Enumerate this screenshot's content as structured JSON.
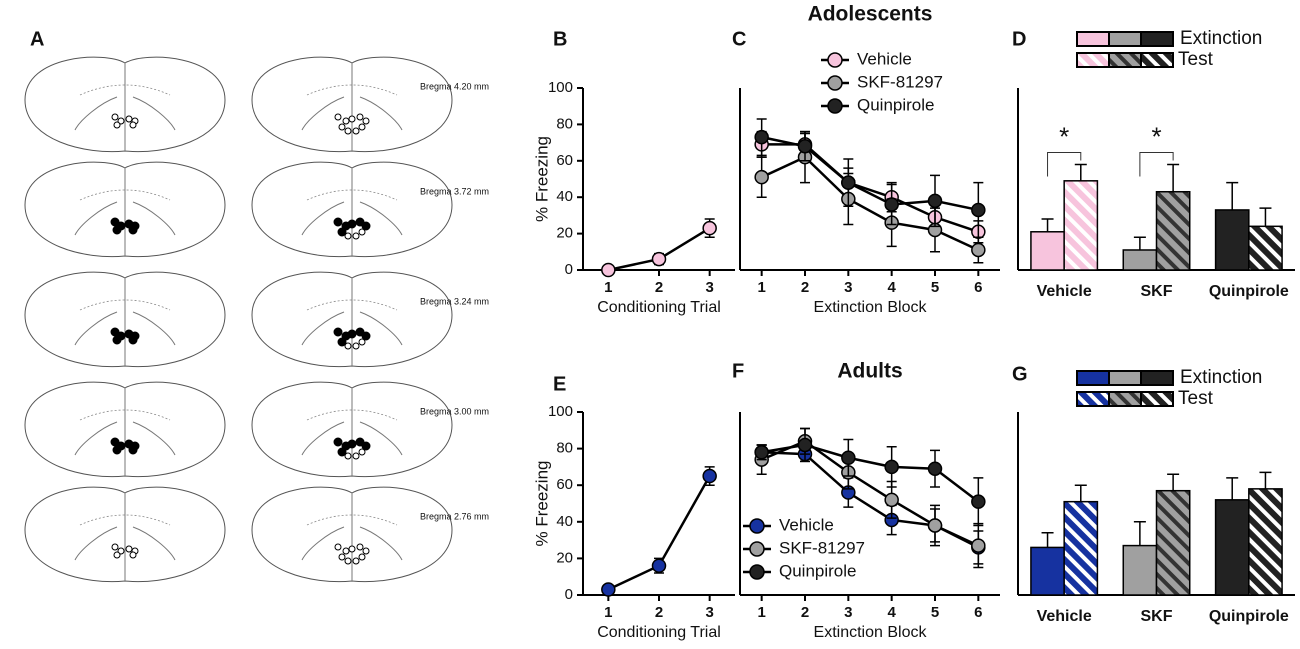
{
  "panel_a": {
    "label": "A",
    "bregma": [
      "Bregma 4.20 mm",
      "Bregma 3.72 mm",
      "Bregma 3.24 mm",
      "Bregma 3.00 mm",
      "Bregma 2.76 mm"
    ]
  },
  "chart_data": [
    {
      "type": "line",
      "label": "B",
      "ylabel": "% Freezing",
      "xlabel": "Conditioning Trial",
      "categories": [
        "1",
        "2",
        "3"
      ],
      "ylim": [
        0,
        100
      ],
      "yticks": [
        0,
        20,
        40,
        60,
        80,
        100
      ],
      "series": [
        {
          "color": "#f7c4dd",
          "values": [
            0,
            6,
            23
          ],
          "errors": [
            0,
            3,
            5
          ]
        }
      ]
    },
    {
      "type": "line",
      "label": "C",
      "title": "Adolescents",
      "xlabel": "Extinction Block",
      "categories": [
        "1",
        "2",
        "3",
        "4",
        "5",
        "6"
      ],
      "ylim": [
        0,
        100
      ],
      "series": [
        {
          "name": "Vehicle",
          "color": "#f7c4dd",
          "values": [
            69,
            69,
            48,
            40,
            29,
            21
          ],
          "errors": [
            7,
            6,
            8,
            8,
            7,
            6
          ]
        },
        {
          "name": "SKF-81297",
          "color": "#a0a0a0",
          "values": [
            51,
            62,
            39,
            26,
            22,
            11
          ],
          "errors": [
            11,
            14,
            14,
            13,
            12,
            7
          ]
        },
        {
          "name": "Quinpirole",
          "color": "#222222",
          "values": [
            73,
            68,
            48,
            36,
            38,
            33
          ],
          "errors": [
            10,
            8,
            13,
            11,
            14,
            15
          ]
        }
      ]
    },
    {
      "type": "bar",
      "label": "D",
      "categories": [
        "Vehicle",
        "SKF",
        "Quinpirole"
      ],
      "ylim": [
        0,
        100
      ],
      "colors": [
        "#f7c4dd",
        "#a0a0a0",
        "#222222"
      ],
      "series": [
        {
          "name": "Extinction",
          "pattern": "solid",
          "values": [
            21,
            11,
            33
          ],
          "errors": [
            7,
            7,
            15
          ]
        },
        {
          "name": "Test",
          "pattern": "hatch",
          "values": [
            49,
            43,
            24
          ],
          "errors": [
            9,
            15,
            10
          ]
        }
      ],
      "annotations": [
        {
          "text": "*",
          "category": 0
        },
        {
          "text": "*",
          "category": 1
        }
      ]
    },
    {
      "type": "line",
      "label": "E",
      "ylabel": "% Freezing",
      "xlabel": "Conditioning Trial",
      "categories": [
        "1",
        "2",
        "3"
      ],
      "ylim": [
        0,
        100
      ],
      "yticks": [
        0,
        20,
        40,
        60,
        80,
        100
      ],
      "series": [
        {
          "color": "#1632a0",
          "values": [
            3,
            16,
            65
          ],
          "errors": [
            1,
            4,
            5
          ]
        }
      ]
    },
    {
      "type": "line",
      "label": "F",
      "title": "Adults",
      "xlabel": "Extinction Block",
      "categories": [
        "1",
        "2",
        "3",
        "4",
        "5",
        "6"
      ],
      "ylim": [
        0,
        100
      ],
      "series": [
        {
          "name": "Vehicle",
          "color": "#1632a0",
          "values": [
            78,
            77,
            56,
            41,
            38,
            26
          ],
          "errors": [
            4,
            4,
            8,
            8,
            9,
            9
          ]
        },
        {
          "name": "SKF-81297",
          "color": "#a0a0a0",
          "values": [
            74,
            84,
            67,
            52,
            38,
            27
          ],
          "errors": [
            8,
            7,
            9,
            10,
            11,
            12
          ]
        },
        {
          "name": "Quinpirole",
          "color": "#222222",
          "values": [
            78,
            82,
            75,
            70,
            69,
            51
          ],
          "errors": [
            4,
            9,
            10,
            11,
            10,
            13
          ]
        }
      ]
    },
    {
      "type": "bar",
      "label": "G",
      "categories": [
        "Vehicle",
        "SKF",
        "Quinpirole"
      ],
      "ylim": [
        0,
        100
      ],
      "colors": [
        "#1632a0",
        "#a0a0a0",
        "#222222"
      ],
      "series": [
        {
          "name": "Extinction",
          "pattern": "solid",
          "values": [
            26,
            27,
            52
          ],
          "errors": [
            8,
            13,
            12
          ]
        },
        {
          "name": "Test",
          "pattern": "hatch",
          "values": [
            51,
            57,
            58
          ],
          "errors": [
            9,
            9,
            9
          ]
        }
      ]
    }
  ]
}
